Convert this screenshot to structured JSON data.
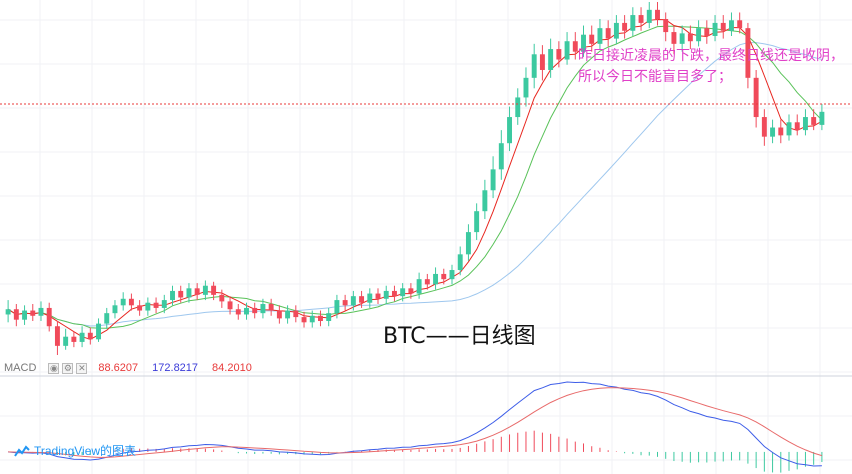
{
  "title": "BTC——日线图",
  "annotation": "昨日接近凌晨的下跌，最终日线还是收阴，所以今日不能盲目多了；",
  "macd": {
    "label": "MACD",
    "values": [
      "88.6207",
      "172.8217",
      "84.2010"
    ]
  },
  "watermark": "TradingView的图表",
  "colors": {
    "up": "#3cc9a0",
    "down": "#f04a5a",
    "ma_fast": "#e8261f",
    "ma_mid": "#59c259",
    "ma_slow": "#9ec7ee",
    "dif": "#3d5de8",
    "dea": "#e86a6a",
    "price_line": "#e83a3a",
    "annotation": "#e040c8"
  },
  "chart_data": {
    "type": "candlestick",
    "candles": [
      [
        289,
        293,
        300,
        283
      ],
      [
        293,
        285,
        297,
        280
      ],
      [
        285,
        292,
        296,
        281
      ],
      [
        292,
        288,
        297,
        284
      ],
      [
        288,
        294,
        299,
        284
      ],
      [
        294,
        280,
        298,
        276
      ],
      [
        280,
        265,
        284,
        258
      ],
      [
        265,
        272,
        278,
        262
      ],
      [
        272,
        268,
        276,
        264
      ],
      [
        268,
        275,
        280,
        264
      ],
      [
        275,
        270,
        279,
        266
      ],
      [
        270,
        282,
        286,
        268
      ],
      [
        282,
        290,
        294,
        278
      ],
      [
        290,
        296,
        300,
        286
      ],
      [
        296,
        301,
        306,
        292
      ],
      [
        301,
        296,
        305,
        292
      ],
      [
        296,
        292,
        300,
        288
      ],
      [
        292,
        298,
        302,
        288
      ],
      [
        298,
        294,
        302,
        290
      ],
      [
        294,
        300,
        304,
        290
      ],
      [
        300,
        307,
        311,
        296
      ],
      [
        307,
        302,
        311,
        298
      ],
      [
        302,
        309,
        313,
        298
      ],
      [
        309,
        304,
        313,
        300
      ],
      [
        304,
        311,
        315,
        300
      ],
      [
        311,
        304,
        314,
        300
      ],
      [
        304,
        299,
        308,
        294
      ],
      [
        299,
        293,
        303,
        289
      ],
      [
        293,
        289,
        297,
        285
      ],
      [
        289,
        294,
        298,
        285
      ],
      [
        294,
        290,
        298,
        286
      ],
      [
        290,
        297,
        301,
        286
      ],
      [
        297,
        292,
        301,
        288
      ],
      [
        292,
        286,
        296,
        282
      ],
      [
        286,
        292,
        296,
        282
      ],
      [
        292,
        287,
        296,
        283
      ],
      [
        287,
        283,
        291,
        279
      ],
      [
        283,
        288,
        292,
        279
      ],
      [
        288,
        284,
        292,
        280
      ],
      [
        284,
        290,
        294,
        280
      ],
      [
        290,
        300,
        304,
        286
      ],
      [
        300,
        296,
        304,
        292
      ],
      [
        296,
        303,
        307,
        292
      ],
      [
        303,
        298,
        307,
        294
      ],
      [
        298,
        305,
        309,
        294
      ],
      [
        305,
        301,
        309,
        297
      ],
      [
        301,
        307,
        311,
        297
      ],
      [
        307,
        303,
        311,
        299
      ],
      [
        303,
        309,
        313,
        299
      ],
      [
        309,
        305,
        313,
        301
      ],
      [
        305,
        316,
        321,
        301
      ],
      [
        316,
        312,
        320,
        308
      ],
      [
        312,
        320,
        325,
        308
      ],
      [
        320,
        316,
        324,
        312
      ],
      [
        316,
        323,
        327,
        312
      ],
      [
        323,
        335,
        341,
        319
      ],
      [
        335,
        352,
        358,
        330
      ],
      [
        352,
        368,
        374,
        346
      ],
      [
        368,
        384,
        392,
        362
      ],
      [
        384,
        400,
        410,
        378
      ],
      [
        400,
        420,
        430,
        392
      ],
      [
        420,
        440,
        448,
        414
      ],
      [
        440,
        455,
        462,
        434
      ],
      [
        455,
        470,
        478,
        448
      ],
      [
        470,
        488,
        496,
        462
      ],
      [
        488,
        476,
        495,
        468
      ],
      [
        476,
        492,
        500,
        470
      ],
      [
        492,
        484,
        498,
        478
      ],
      [
        484,
        498,
        505,
        480
      ],
      [
        498,
        490,
        505,
        484
      ],
      [
        490,
        503,
        510,
        486
      ],
      [
        503,
        496,
        510,
        490
      ],
      [
        496,
        508,
        515,
        492
      ],
      [
        508,
        500,
        514,
        494
      ],
      [
        500,
        512,
        518,
        496
      ],
      [
        512,
        506,
        518,
        500
      ],
      [
        506,
        518,
        524,
        502
      ],
      [
        518,
        512,
        524,
        506
      ],
      [
        512,
        522,
        528,
        508
      ],
      [
        522,
        515,
        528,
        510
      ],
      [
        515,
        505,
        520,
        498
      ],
      [
        505,
        496,
        510,
        488
      ],
      [
        496,
        504,
        510,
        490
      ],
      [
        504,
        498,
        510,
        492
      ],
      [
        498,
        508,
        514,
        494
      ],
      [
        508,
        502,
        514,
        496
      ],
      [
        502,
        512,
        518,
        498
      ],
      [
        512,
        506,
        518,
        500
      ],
      [
        506,
        514,
        520,
        502
      ],
      [
        514,
        508,
        520,
        504
      ],
      [
        508,
        470,
        512,
        462
      ],
      [
        470,
        440,
        476,
        432
      ],
      [
        440,
        425,
        446,
        418
      ],
      [
        425,
        432,
        438,
        420
      ],
      [
        432,
        426,
        438,
        420
      ],
      [
        426,
        436,
        442,
        422
      ],
      [
        436,
        430,
        442,
        426
      ],
      [
        430,
        440,
        446,
        426
      ],
      [
        440,
        434,
        446,
        430
      ],
      [
        434,
        444,
        450,
        430
      ]
    ],
    "annotations": [
      "BTC——日线图",
      "昨日接近凌晨的下跌，最终日线还是收阴，所以今日不能盲目多了；"
    ],
    "indicator": "MACD",
    "indicator_values": [
      "88.6207",
      "172.8217",
      "84.2010"
    ],
    "grid": true
  }
}
